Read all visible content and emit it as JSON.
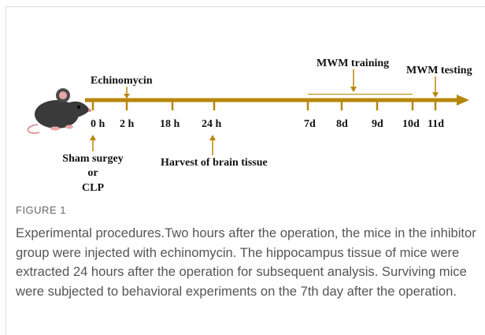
{
  "figure": {
    "timeline": {
      "ticks": [
        "0 h",
        "2 h",
        "18 h",
        "24 h",
        "7d",
        "8d",
        "9d",
        "10d",
        "11d"
      ]
    },
    "events": {
      "echinomycin": "Echinomycin",
      "mwm_training": "MWM training",
      "mwm_testing": "MWM testing",
      "sham": [
        "Sham surgey",
        "or",
        "CLP"
      ],
      "harvest": "Harvest of brain tissue"
    },
    "caption": {
      "label": "FIGURE 1",
      "text": "Experimental procedures.Two hours after the operation, the mice in the inhibitor group were injected with echinomycin. The hippocampus tissue of mice were extracted 24 hours after the operation for subsequent analysis. Surviving mice were subjected to behavioral experiments on the 7th day after the operation."
    }
  }
}
